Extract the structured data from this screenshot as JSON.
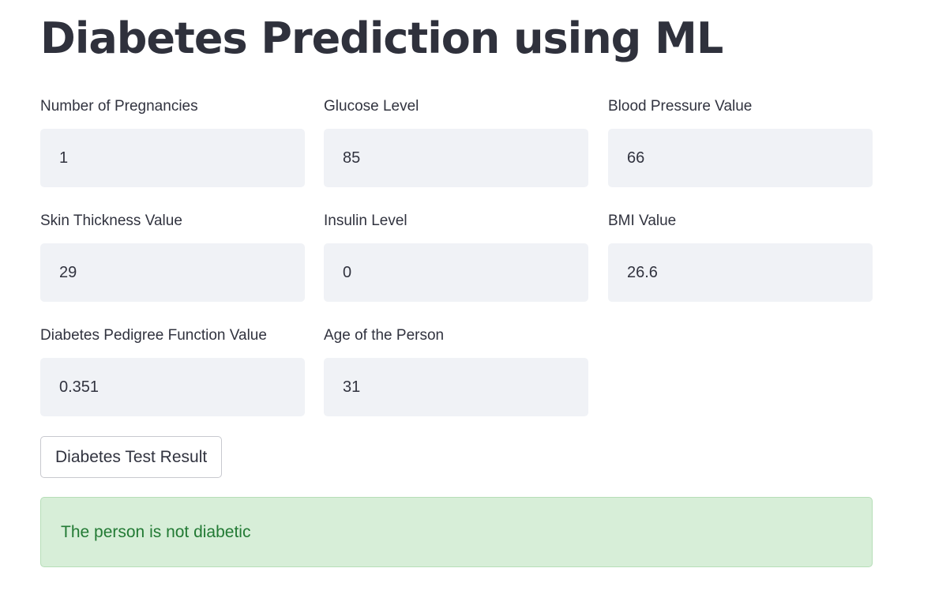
{
  "page": {
    "title": "Diabetes Prediction using ML"
  },
  "fields": [
    {
      "label": "Number of Pregnancies",
      "value": "1"
    },
    {
      "label": "Glucose Level",
      "value": "85"
    },
    {
      "label": "Blood Pressure Value",
      "value": "66"
    },
    {
      "label": "Skin Thickness Value",
      "value": "29"
    },
    {
      "label": "Insulin Level",
      "value": "0"
    },
    {
      "label": "BMI Value",
      "value": "26.6"
    },
    {
      "label": "Diabetes Pedigree Function Value",
      "value": "0.351"
    },
    {
      "label": "Age of the Person",
      "value": "31"
    }
  ],
  "submit": {
    "label": "Diabetes Test Result"
  },
  "result": {
    "message": "The person is not diabetic",
    "status_color": "#227a34",
    "background_color": "#d7eed8"
  }
}
